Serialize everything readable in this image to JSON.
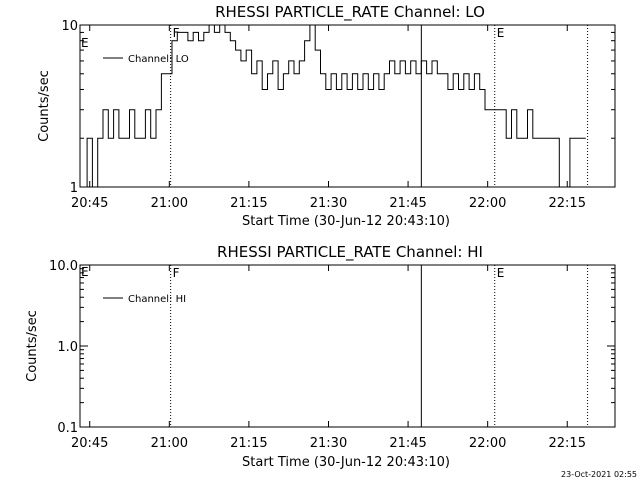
{
  "chart_data": [
    {
      "type": "line",
      "title": "RHESSI PARTICLE_RATE Channel: LO",
      "xlabel": "Start Time (30-Jun-12 20:43:10)",
      "ylabel": "Counts/sec",
      "y_scale": "log",
      "ylim": [
        1,
        10
      ],
      "y_ticks": [
        "1",
        "10"
      ],
      "x_ticks": [
        "20:45",
        "21:00",
        "21:15",
        "21:30",
        "21:45",
        "22:00",
        "22:15"
      ],
      "xlim": [
        "20:43:10",
        "22:24:00"
      ],
      "legend": {
        "entry": "Channel: LO",
        "placement": "top-left"
      },
      "grid": false,
      "series": [
        {
          "name": "Channel: LO",
          "x": [
            "20:44",
            "20:45",
            "20:46",
            "20:47",
            "20:48",
            "20:49",
            "20:50",
            "20:51",
            "20:52",
            "20:53",
            "20:54",
            "20:55",
            "20:56",
            "20:57",
            "20:58",
            "20:59",
            "21:00",
            "21:01",
            "21:02",
            "21:03",
            "21:04",
            "21:05",
            "21:06",
            "21:07",
            "21:08",
            "21:09",
            "21:10",
            "21:11",
            "21:12",
            "21:13",
            "21:14",
            "21:15",
            "21:16",
            "21:17",
            "21:18",
            "21:19",
            "21:20",
            "21:21",
            "21:22",
            "21:23",
            "21:24",
            "21:25",
            "21:26",
            "21:27",
            "21:28",
            "21:29",
            "21:30",
            "21:31",
            "21:32",
            "21:33",
            "21:34",
            "21:35",
            "21:36",
            "21:37",
            "21:38",
            "21:39",
            "21:40",
            "21:41",
            "21:42",
            "21:43",
            "21:44",
            "21:45",
            "21:46",
            "21:47",
            "21:48",
            "21:49",
            "21:50",
            "21:51",
            "21:52",
            "21:53",
            "21:54",
            "21:55",
            "21:56",
            "21:57",
            "21:58",
            "21:59",
            "22:00",
            "22:01",
            "22:02",
            "22:03",
            "22:04",
            "22:05",
            "22:06",
            "22:07",
            "22:08",
            "22:09",
            "22:10",
            "22:11",
            "22:12",
            "22:13",
            "22:14",
            "22:15",
            "22:16",
            "22:17",
            "22:18"
          ],
          "y": [
            1,
            2,
            1,
            2,
            3,
            2,
            3,
            2,
            2,
            3,
            2,
            2,
            3,
            2,
            3,
            5,
            5,
            8,
            9,
            9,
            8,
            9,
            8,
            9,
            10,
            9,
            10,
            9,
            8,
            7,
            6,
            7,
            5,
            6,
            4,
            5,
            6,
            4,
            5,
            6,
            5,
            6,
            8,
            10,
            7,
            5,
            4,
            5,
            4,
            5,
            4,
            5,
            4,
            5,
            4,
            5,
            4,
            5,
            6,
            5,
            6,
            5,
            6,
            5,
            6,
            5,
            6,
            5,
            5,
            4,
            5,
            4,
            5,
            4,
            5,
            4,
            3,
            3,
            3,
            3,
            2,
            3,
            2,
            2,
            3,
            2,
            2,
            2,
            2,
            2,
            1,
            1,
            2,
            2,
            2
          ]
        }
      ],
      "event_lines": [
        {
          "time": "21:00:15",
          "style": "dotted",
          "flag": "F"
        },
        {
          "time": "21:47:30",
          "style": "solid",
          "flag": ""
        },
        {
          "time": "22:01:20",
          "style": "dotted",
          "flag": "E"
        },
        {
          "time": "22:18:50",
          "style": "dotted",
          "flag": ""
        }
      ],
      "corner_flag": "E"
    },
    {
      "type": "line",
      "title": "RHESSI PARTICLE_RATE Channel: HI",
      "xlabel": "Start Time (30-Jun-12 20:43:10)",
      "ylabel": "Counts/sec",
      "y_scale": "log",
      "ylim": [
        0.1,
        10
      ],
      "y_ticks": [
        "0.1",
        "1.0",
        "10.0"
      ],
      "x_ticks": [
        "20:45",
        "21:00",
        "21:15",
        "21:30",
        "21:45",
        "22:00",
        "22:15"
      ],
      "xlim": [
        "20:43:10",
        "22:24:00"
      ],
      "legend": {
        "entry": "Channel: HI",
        "placement": "top-left"
      },
      "grid": false,
      "series": [
        {
          "name": "Channel: HI",
          "x": [],
          "y": []
        }
      ],
      "event_lines": [
        {
          "time": "21:00:15",
          "style": "dotted",
          "flag": "F"
        },
        {
          "time": "21:47:30",
          "style": "solid",
          "flag": ""
        },
        {
          "time": "22:01:20",
          "style": "dotted",
          "flag": "E"
        },
        {
          "time": "22:18:50",
          "style": "dotted",
          "flag": ""
        }
      ],
      "corner_flag": "E"
    }
  ],
  "footer": {
    "timestamp": "23-Oct-2021 02:55"
  },
  "colors": {
    "background": "#ffffff",
    "ink": "#000000"
  }
}
